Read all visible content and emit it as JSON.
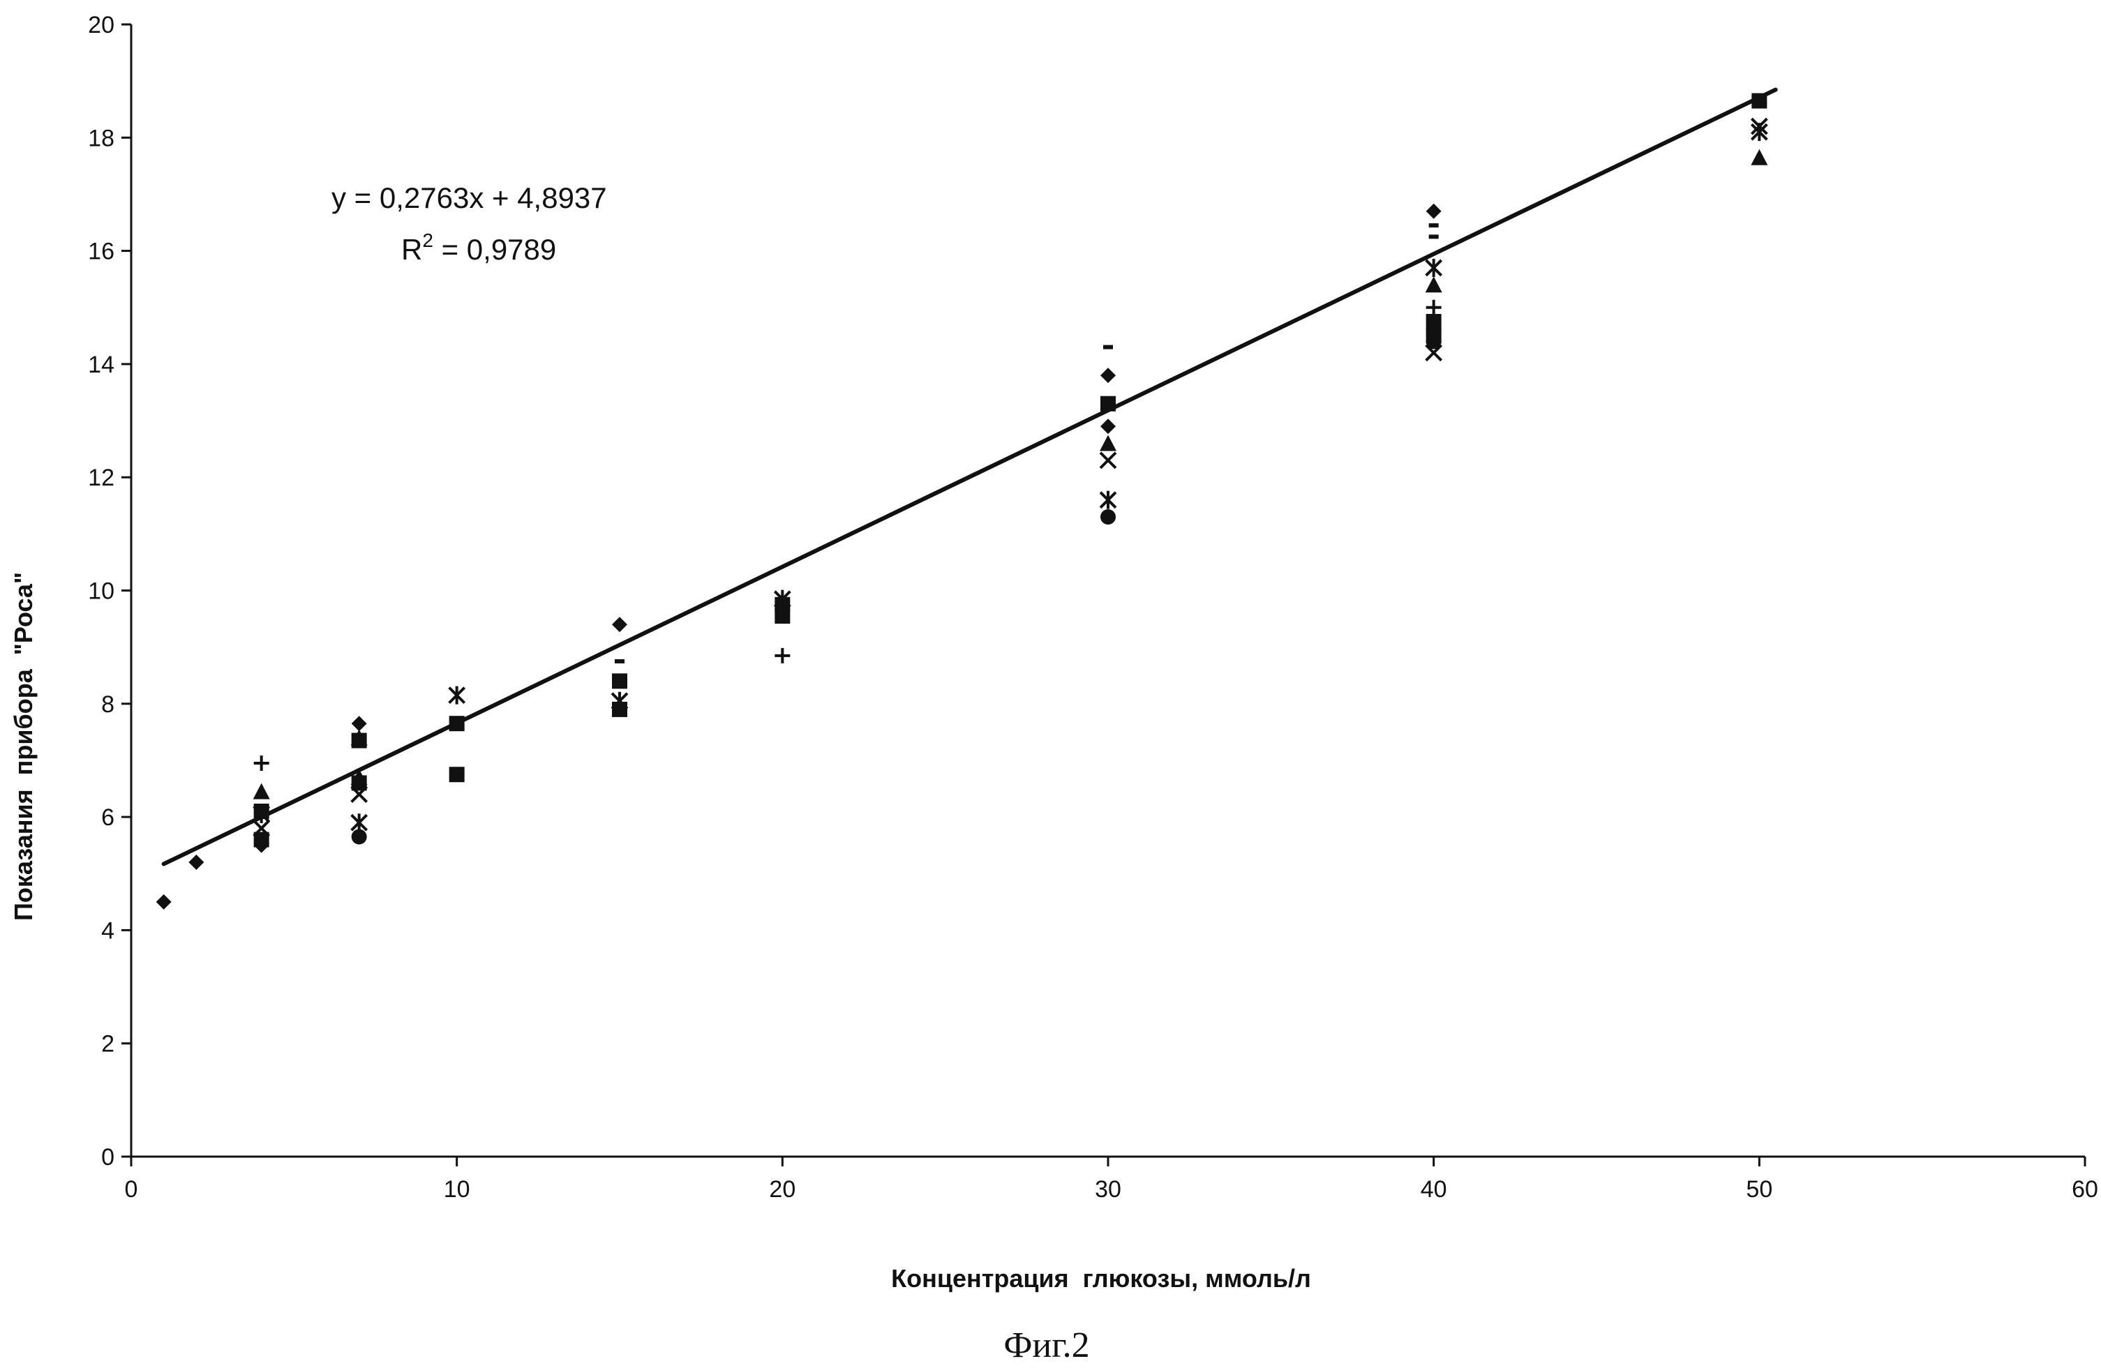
{
  "chart_data": {
    "type": "scatter",
    "title": "",
    "xlabel": "Концентрация  глюкозы, ммоль/л",
    "ylabel": "Показания  прибора  \"Роса\"",
    "xlim": [
      0,
      60
    ],
    "ylim": [
      0,
      20
    ],
    "x_ticks": [
      0,
      10,
      20,
      30,
      40,
      50,
      60
    ],
    "y_ticks": [
      0,
      2,
      4,
      6,
      8,
      10,
      12,
      14,
      16,
      18,
      20
    ],
    "grid": false,
    "legend": "none",
    "trendline": {
      "slope": 0.2763,
      "intercept": 4.8937,
      "x_range": [
        1,
        50.5
      ],
      "equation_label": "y = 0,2763x + 4,8937",
      "r2_prefix": "R",
      "r2_sup": "2",
      "r2_suffix": " = 0,9789"
    },
    "series": [
      {
        "marker": "diamond",
        "points": [
          [
            1,
            4.5
          ],
          [
            2,
            5.2
          ],
          [
            4,
            5.5
          ],
          [
            7,
            7.65
          ],
          [
            15,
            9.4
          ],
          [
            30,
            13.8
          ],
          [
            30,
            12.9
          ],
          [
            40,
            16.7
          ]
        ]
      },
      {
        "marker": "square",
        "points": [
          [
            4,
            5.6
          ],
          [
            4,
            6.1
          ],
          [
            7,
            6.6
          ],
          [
            7,
            7.35
          ],
          [
            10,
            7.65
          ],
          [
            10,
            6.75
          ],
          [
            15,
            7.9
          ],
          [
            15,
            8.4
          ],
          [
            20,
            9.55
          ],
          [
            20,
            9.75
          ],
          [
            30,
            13.3
          ],
          [
            40,
            14.5
          ],
          [
            40,
            14.75
          ],
          [
            50,
            18.65
          ]
        ]
      },
      {
        "marker": "triangle",
        "points": [
          [
            4,
            6.45
          ],
          [
            7,
            6.7
          ],
          [
            7,
            7.4
          ],
          [
            30,
            12.6
          ],
          [
            40,
            15.4
          ],
          [
            50,
            17.65
          ]
        ]
      },
      {
        "marker": "x",
        "points": [
          [
            4,
            5.8
          ],
          [
            7,
            6.4
          ],
          [
            30,
            12.3
          ],
          [
            40,
            14.2
          ],
          [
            50,
            18.2
          ]
        ]
      },
      {
        "marker": "asterisk",
        "points": [
          [
            4,
            6.05
          ],
          [
            7,
            5.9
          ],
          [
            10,
            8.15
          ],
          [
            15,
            8.05
          ],
          [
            20,
            9.85
          ],
          [
            30,
            11.6
          ],
          [
            40,
            15.7
          ],
          [
            50,
            18.1
          ]
        ]
      },
      {
        "marker": "circle",
        "points": [
          [
            7,
            5.65
          ],
          [
            30,
            11.3
          ],
          [
            40,
            14.4
          ]
        ]
      },
      {
        "marker": "plus",
        "points": [
          [
            4,
            6.95
          ],
          [
            20,
            8.85
          ],
          [
            40,
            15.0
          ]
        ]
      },
      {
        "marker": "dash",
        "points": [
          [
            15,
            8.75
          ],
          [
            30,
            14.3
          ],
          [
            40,
            16.25
          ],
          [
            40,
            16.45
          ]
        ]
      }
    ]
  },
  "caption": "Фиг.2"
}
